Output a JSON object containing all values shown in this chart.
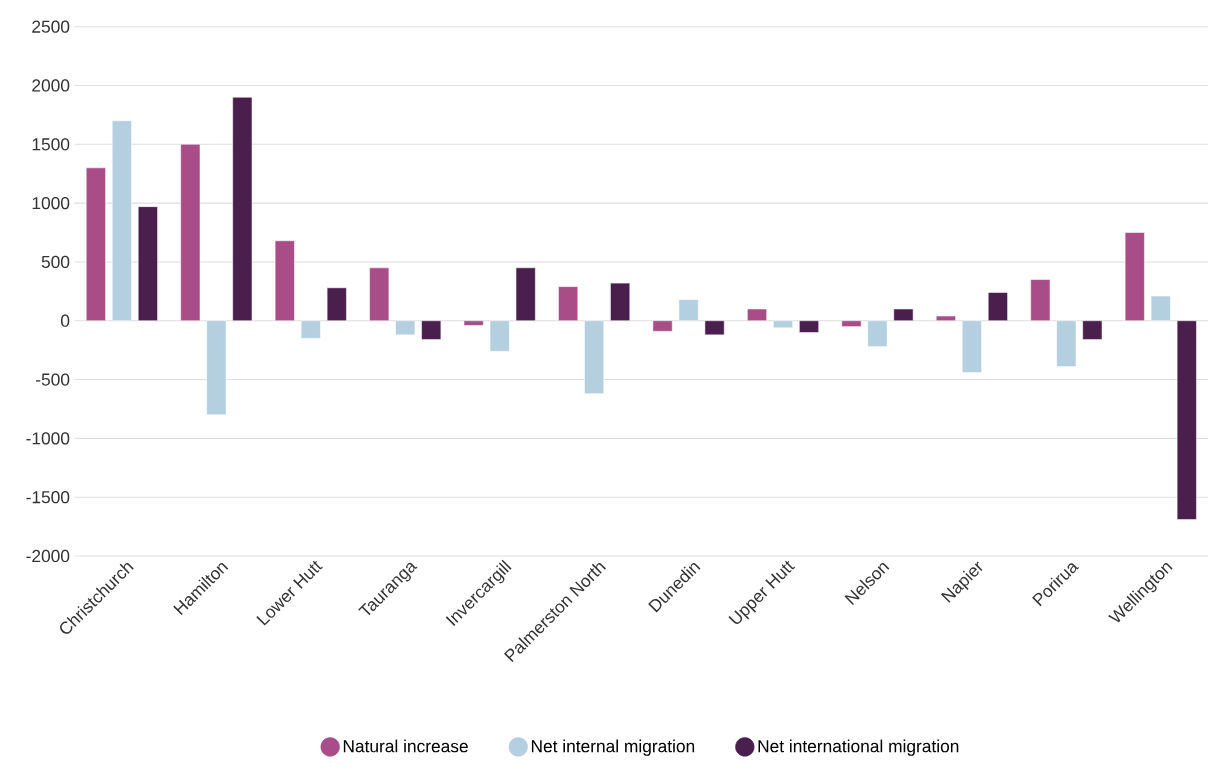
{
  "chart_data": {
    "type": "bar",
    "categories": [
      "Christchurch",
      "Hamilton",
      "Lower Hutt",
      "Tauranga",
      "Invercargill",
      "Palmerston North",
      "Dunedin",
      "Upper Hutt",
      "Nelson",
      "Napier",
      "Porirua",
      "Wellington"
    ],
    "series": [
      {
        "name": "Natural increase",
        "color": "#a94d88",
        "values": [
          1300,
          1500,
          680,
          450,
          -40,
          290,
          -90,
          100,
          -50,
          40,
          350,
          750
        ]
      },
      {
        "name": "Net internal migration",
        "color": "#b4cfe0",
        "values": [
          1700,
          -800,
          -150,
          -120,
          -260,
          -620,
          180,
          -60,
          -220,
          -440,
          -390,
          210
        ]
      },
      {
        "name": "Net international migration",
        "color": "#4a1f4e",
        "values": [
          970,
          1900,
          280,
          -160,
          450,
          320,
          -120,
          -100,
          100,
          240,
          -160,
          -1690
        ]
      }
    ],
    "ylim": [
      -2000,
      2500
    ],
    "yticks": [
      -2000,
      -1500,
      -1000,
      -500,
      0,
      500,
      1000,
      1500,
      2000,
      2500
    ],
    "grid": "y",
    "legend": "bottom",
    "marker": "circle"
  }
}
